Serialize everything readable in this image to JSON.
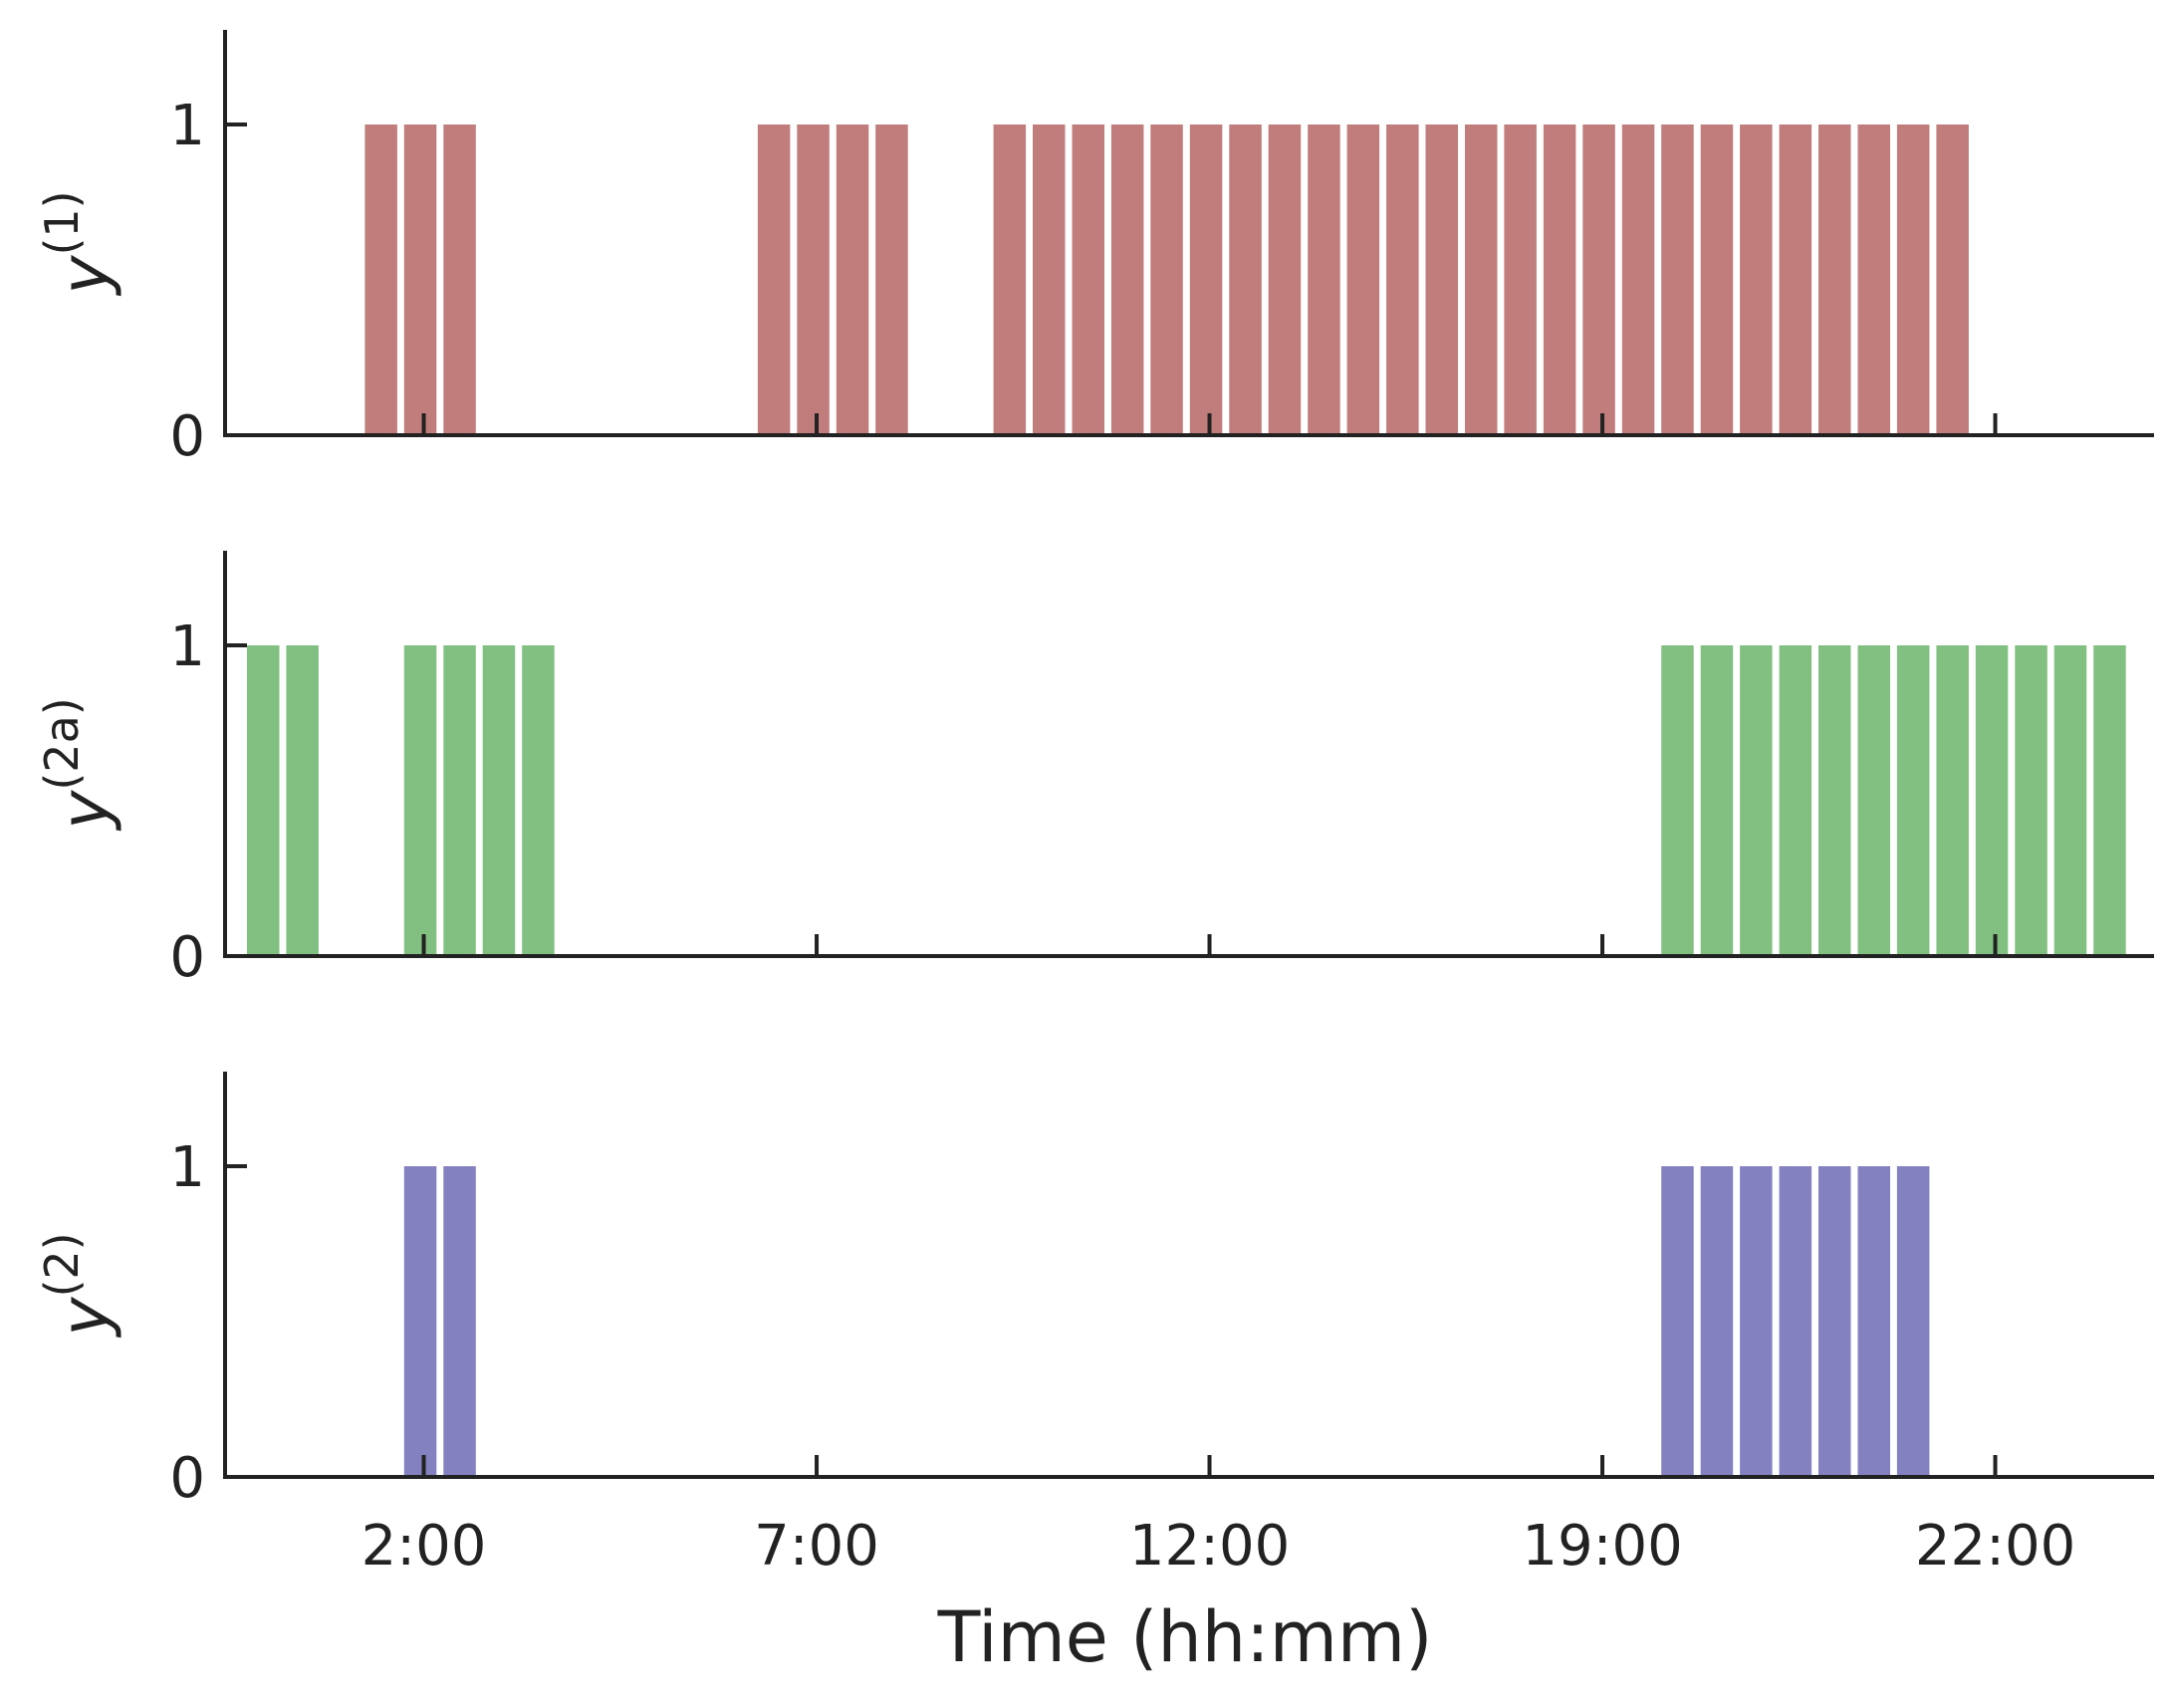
{
  "chart_data": {
    "type": "bar",
    "xlabel": "Time (hh:mm)",
    "x_ticks": [
      "2:00",
      "7:00",
      "12:00",
      "19:00",
      "22:00"
    ],
    "x_tick_slots": [
      4.5,
      14.5,
      24.5,
      34.5,
      44.5
    ],
    "slot_range": [
      0,
      49
    ],
    "ylim": [
      0,
      1.3
    ],
    "y_ticks": [
      0,
      1
    ],
    "panels": [
      {
        "name": "y1",
        "ylabel_base": "y",
        "ylabel_sup": "(1)",
        "color": "#c07d7c",
        "active_slots": [
          3,
          4,
          5,
          13,
          14,
          15,
          16,
          19,
          20,
          21,
          22,
          23,
          24,
          25,
          26,
          27,
          28,
          29,
          30,
          31,
          32,
          33,
          34,
          35,
          36,
          37,
          38,
          39,
          40,
          41,
          42,
          43
        ]
      },
      {
        "name": "y2a",
        "ylabel_base": "y",
        "ylabel_sup": "(2a)",
        "color": "#82c081",
        "active_slots": [
          0,
          1,
          4,
          5,
          6,
          7,
          36,
          37,
          38,
          39,
          40,
          41,
          42,
          43,
          44,
          45,
          46,
          47
        ]
      },
      {
        "name": "y2",
        "ylabel_base": "y",
        "ylabel_sup": "(2)",
        "color": "#8381c0",
        "active_slots": [
          4,
          5,
          36,
          37,
          38,
          39,
          40,
          41,
          42
        ]
      }
    ]
  }
}
